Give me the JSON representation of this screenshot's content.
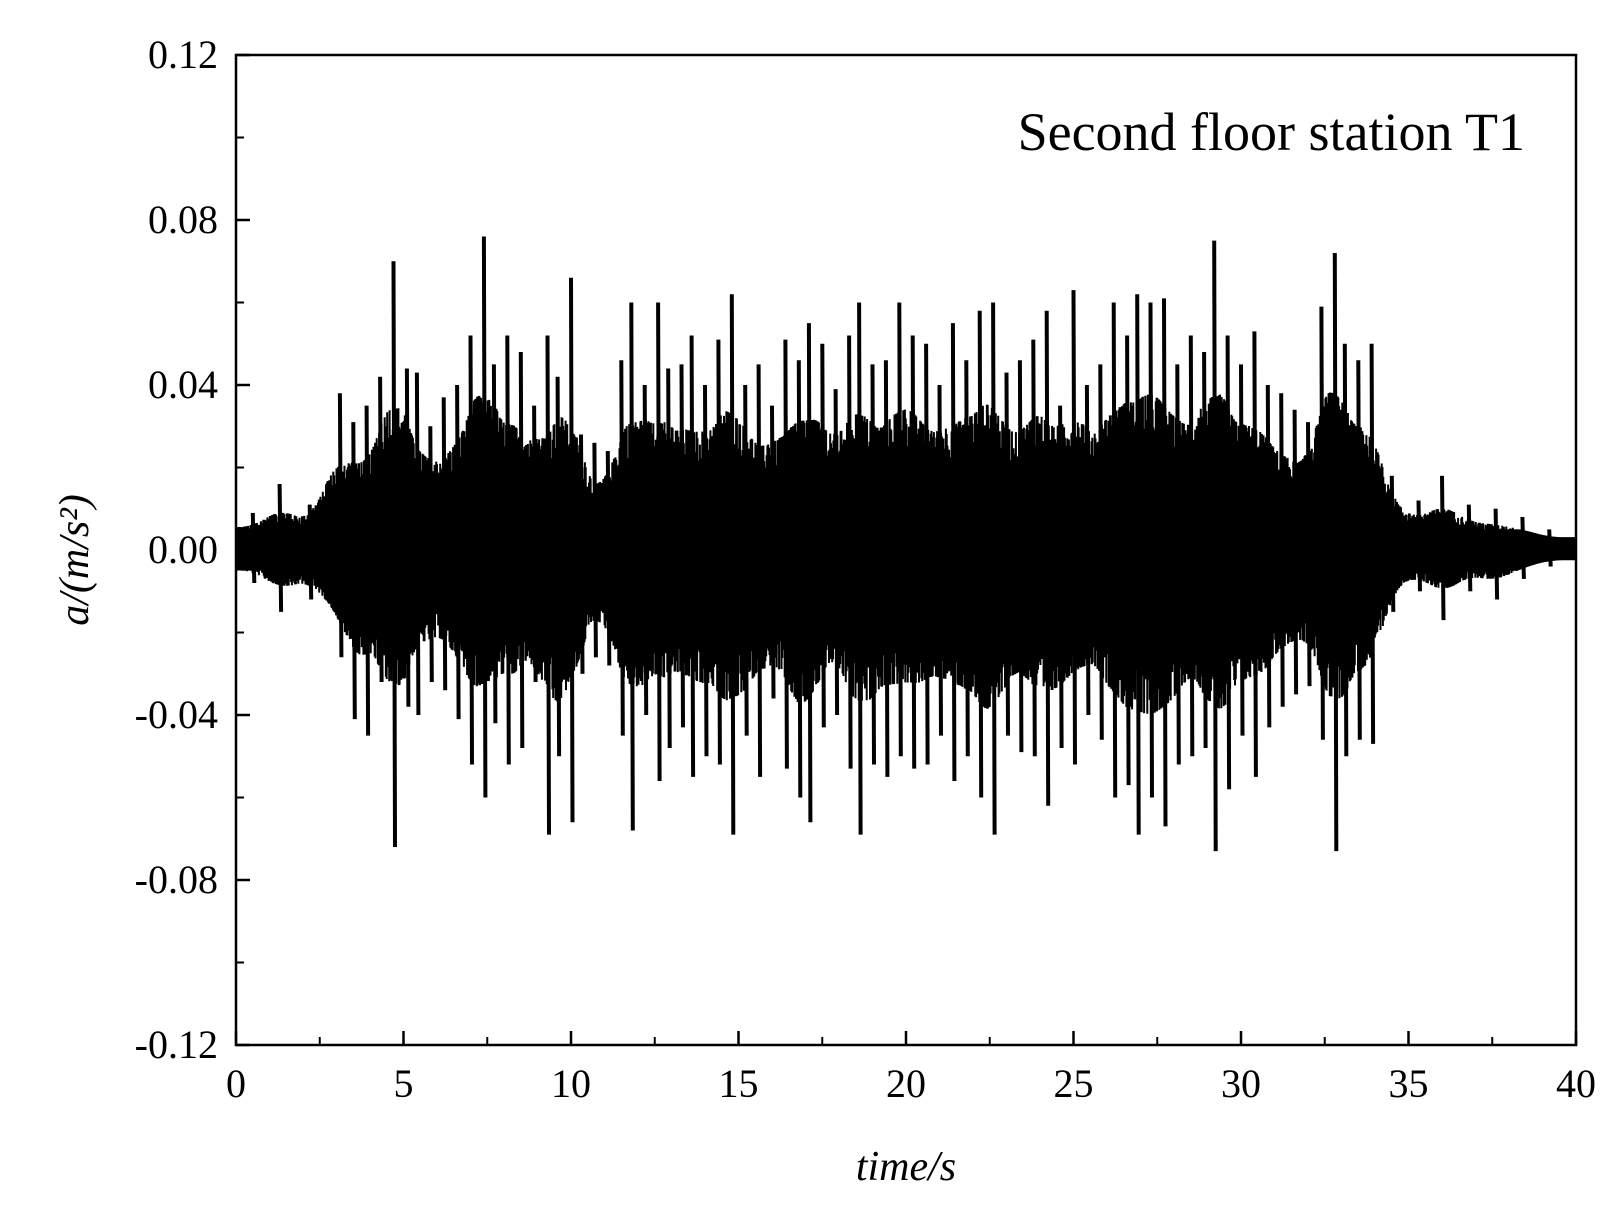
{
  "chart_data": {
    "type": "line",
    "annotation": "Second floor station T1",
    "xlabel": "time/s",
    "ylabel": "a/(m/s²)",
    "xlim": [
      0,
      40
    ],
    "ylim": [
      -0.12,
      0.12
    ],
    "x_ticks": [
      "0",
      "5",
      "10",
      "15",
      "20",
      "25",
      "30",
      "35",
      "40"
    ],
    "y_ticks": [
      "0.12",
      "0.08",
      "0.04",
      "0.00",
      "-0.04",
      "-0.08",
      "-0.12"
    ],
    "grid": false,
    "line_color": "#000000",
    "series": [
      {
        "x": [
          0.5,
          1.3,
          2.2,
          3.1,
          3.5,
          3.9,
          4.3,
          4.7,
          5.1,
          5.4,
          5.8,
          6.2,
          6.6,
          7.0,
          7.4,
          7.7,
          8.1,
          8.5,
          8.9,
          9.3,
          9.6,
          10.0,
          10.3,
          10.7,
          11.1,
          11.5,
          11.8,
          12.2,
          12.6,
          12.9,
          13.3,
          13.6,
          14.0,
          14.4,
          14.8,
          15.2,
          15.6,
          16.0,
          16.4,
          16.8,
          17.1,
          17.5,
          17.9,
          18.3,
          18.6,
          19.0,
          19.4,
          19.8,
          20.2,
          20.6,
          21.0,
          21.4,
          21.8,
          22.2,
          22.6,
          23.0,
          23.4,
          23.8,
          24.2,
          24.6,
          25.0,
          25.4,
          25.8,
          26.2,
          26.6,
          26.9,
          27.3,
          27.7,
          28.1,
          28.5,
          28.9,
          29.2,
          29.6,
          30.0,
          30.4,
          30.8,
          31.2,
          31.6,
          32.0,
          32.4,
          32.8,
          33.1,
          33.5,
          33.9,
          34.5,
          35.3,
          36.0,
          36.8,
          37.6,
          38.4,
          39.2
        ],
        "peak_pos": [
          0.009,
          0.016,
          0.011,
          0.038,
          0.031,
          0.035,
          0.042,
          0.07,
          0.044,
          0.043,
          0.03,
          0.037,
          0.04,
          0.052,
          0.076,
          0.045,
          0.052,
          0.048,
          0.035,
          0.052,
          0.042,
          0.066,
          0.028,
          0.026,
          0.024,
          0.046,
          0.06,
          0.04,
          0.06,
          0.044,
          0.045,
          0.052,
          0.04,
          0.051,
          0.062,
          0.04,
          0.045,
          0.035,
          0.051,
          0.046,
          0.055,
          0.05,
          0.039,
          0.052,
          0.06,
          0.045,
          0.046,
          0.06,
          0.052,
          0.05,
          0.04,
          0.055,
          0.046,
          0.058,
          0.06,
          0.043,
          0.046,
          0.051,
          0.058,
          0.035,
          0.063,
          0.04,
          0.045,
          0.06,
          0.052,
          0.062,
          0.06,
          0.061,
          0.045,
          0.052,
          0.048,
          0.075,
          0.052,
          0.045,
          0.053,
          0.04,
          0.038,
          0.034,
          0.031,
          0.059,
          0.072,
          0.05,
          0.046,
          0.05,
          0.018,
          0.012,
          0.018,
          0.011,
          0.01,
          0.008,
          0.005
        ],
        "peak_neg": [
          -0.008,
          -0.015,
          -0.012,
          -0.026,
          -0.041,
          -0.045,
          -0.032,
          -0.072,
          -0.038,
          -0.04,
          -0.032,
          -0.034,
          -0.041,
          -0.052,
          -0.06,
          -0.042,
          -0.052,
          -0.048,
          -0.032,
          -0.069,
          -0.05,
          -0.066,
          -0.03,
          -0.026,
          -0.028,
          -0.045,
          -0.068,
          -0.04,
          -0.056,
          -0.048,
          -0.043,
          -0.055,
          -0.05,
          -0.052,
          -0.069,
          -0.045,
          -0.055,
          -0.036,
          -0.053,
          -0.06,
          -0.066,
          -0.043,
          -0.04,
          -0.053,
          -0.069,
          -0.052,
          -0.055,
          -0.05,
          -0.053,
          -0.052,
          -0.045,
          -0.056,
          -0.05,
          -0.06,
          -0.069,
          -0.045,
          -0.049,
          -0.05,
          -0.062,
          -0.048,
          -0.052,
          -0.04,
          -0.046,
          -0.06,
          -0.057,
          -0.069,
          -0.06,
          -0.067,
          -0.052,
          -0.05,
          -0.048,
          -0.073,
          -0.058,
          -0.045,
          -0.055,
          -0.043,
          -0.038,
          -0.035,
          -0.033,
          -0.046,
          -0.073,
          -0.05,
          -0.046,
          -0.047,
          -0.015,
          -0.01,
          -0.017,
          -0.01,
          -0.012,
          -0.007,
          -0.004
        ]
      }
    ]
  }
}
